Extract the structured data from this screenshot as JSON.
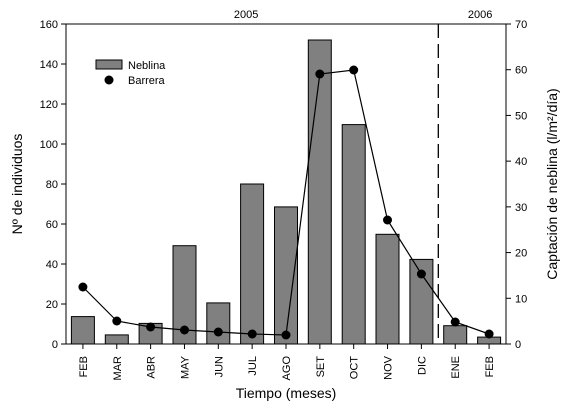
{
  "chart_data": {
    "type": "bar+line",
    "categories": [
      "FEB",
      "MAR",
      "ABR",
      "MAY",
      "JUN",
      "JUL",
      "AGO",
      "SET",
      "OCT",
      "NOV",
      "DIC",
      "ENE",
      "FEB"
    ],
    "xlabel": "Tiempo (meses)",
    "ylabel": "Nº de individuos",
    "ylabel_right": "Captación de neblina (l/m²/día)",
    "ylim": [
      0,
      160
    ],
    "ylim_right": [
      0,
      70
    ],
    "yticks": [
      "0",
      "20",
      "40",
      "60",
      "80",
      "100",
      "120",
      "140",
      "160"
    ],
    "yticks_right": [
      "0",
      "10",
      "20",
      "30",
      "40",
      "50",
      "60",
      "70"
    ],
    "year_labels": [
      {
        "text": "2005"
      },
      {
        "text": "2006"
      }
    ],
    "divider_after_index": 10,
    "legend_position": "top-left",
    "series": [
      {
        "name": "Neblina",
        "type": "bar",
        "axis": "right",
        "color": "#808080",
        "values": [
          6.0,
          2.0,
          4.5,
          21.5,
          9.0,
          35.0,
          30.0,
          66.5,
          48.0,
          24.0,
          18.5,
          4.0,
          1.5
        ]
      },
      {
        "name": "Barrera",
        "type": "line",
        "axis": "left",
        "color": "#000000",
        "values": [
          28.5,
          11.5,
          8.5,
          7.0,
          6.0,
          5.0,
          4.5,
          135.0,
          137.0,
          62.0,
          35.0,
          11.0,
          5.0
        ]
      }
    ]
  }
}
